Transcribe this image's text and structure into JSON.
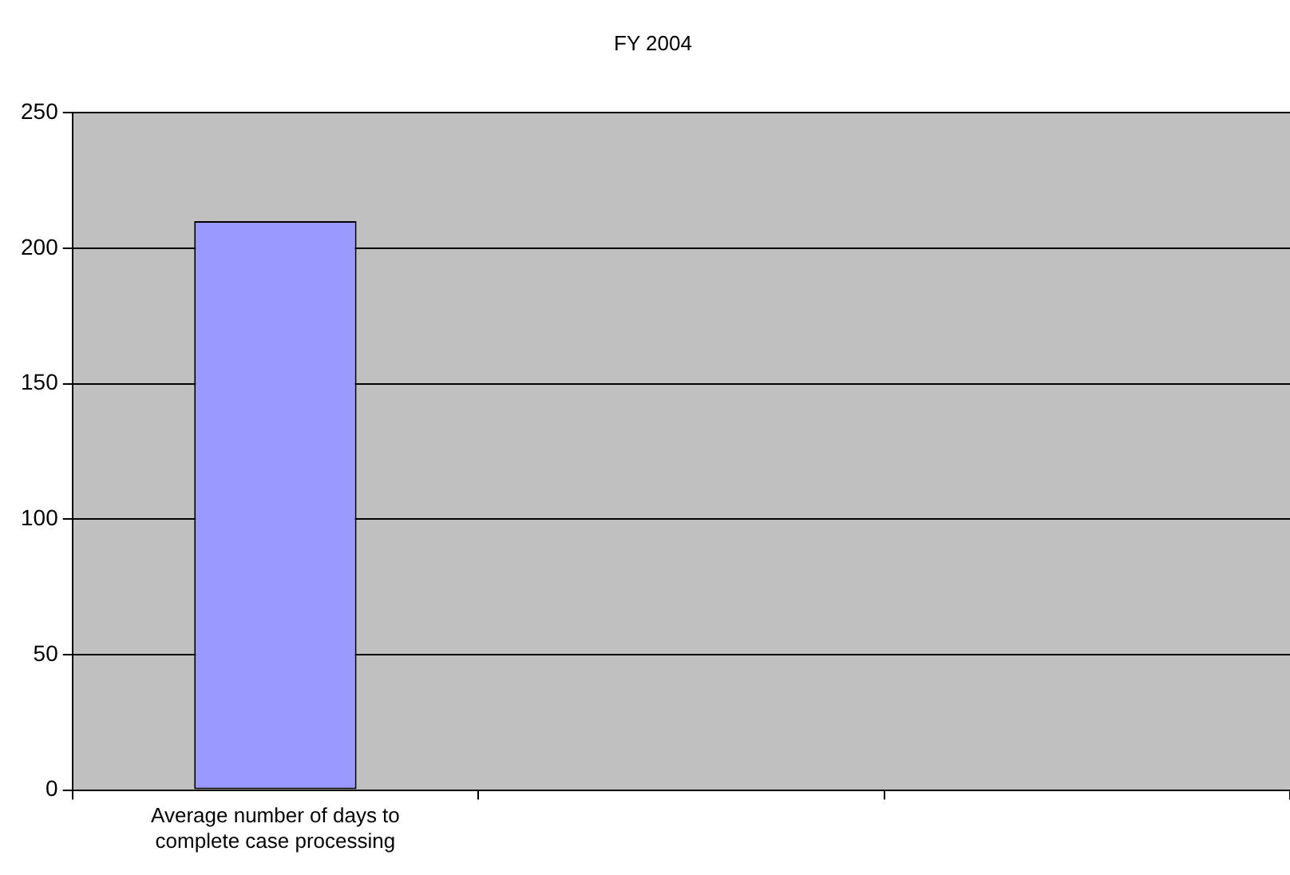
{
  "chart_data": {
    "type": "bar",
    "title": "FY 2004",
    "categories": [
      "Average number of days to complete case processing",
      null,
      null
    ],
    "values": [
      210,
      null,
      null
    ],
    "color": "#9999ff",
    "ylim": [
      0,
      250
    ],
    "yticks": [
      0,
      50,
      100,
      150,
      200,
      250
    ],
    "grid": "y",
    "legend": false
  }
}
